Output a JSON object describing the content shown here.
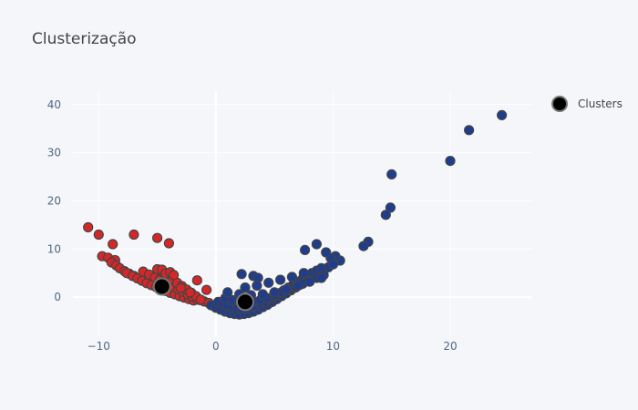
{
  "chart_data": {
    "type": "scatter",
    "title": "Clusterização",
    "xlabel": "",
    "ylabel": "",
    "xlim": [
      -12.2,
      27.0
    ],
    "ylim": [
      -8.3,
      42.8
    ],
    "xticks": [
      -10,
      0,
      10,
      20
    ],
    "yticks": [
      0,
      10,
      20,
      30,
      40
    ],
    "grid": true,
    "legend": {
      "position": "right",
      "entries": [
        "Clusters"
      ]
    },
    "colors": {
      "background": "#f5f6fa",
      "grid": "#ffffff",
      "cluster_red": "#d62728",
      "cluster_blue": "#1f3d8f",
      "marker_edge": "#444444",
      "centroid": "#000000"
    },
    "series": [
      {
        "color": "#d62728",
        "x": [
          -10.9,
          -10.0,
          -9.7,
          -9.2,
          -8.8,
          -8.6,
          -7.0,
          -5.0,
          -4.0,
          -8.9,
          -8.5,
          -8.2,
          -7.8,
          -7.4,
          -7.0,
          -6.6,
          -6.2,
          -5.8,
          -5.4,
          -5.0,
          -4.6,
          -4.2,
          -3.8,
          -3.4,
          -3.0,
          -2.6,
          -2.2,
          -1.8,
          -1.4,
          -1.0,
          -0.6,
          -7.6,
          -7.1,
          -6.7,
          -6.3,
          -5.9,
          -5.5,
          -5.1,
          -4.7,
          -4.3,
          -3.9,
          -3.5,
          -3.1,
          -2.7,
          -2.3,
          -1.9,
          -6.2,
          -5.7,
          -5.2,
          -4.8,
          -4.4,
          -4.0,
          -3.6,
          -3.2,
          -2.8,
          -2.4,
          -2.0,
          -1.6,
          -5.0,
          -4.5,
          -4.1,
          -3.7,
          -3.3,
          -2.9,
          -2.5,
          -2.1,
          -1.7,
          -1.3,
          -4.6,
          -4.3,
          -3.9,
          -3.6,
          -1.6,
          -0.8,
          -3.0,
          -2.2
        ],
        "y": [
          14.5,
          13.0,
          8.5,
          8.2,
          11.0,
          7.7,
          13.0,
          12.3,
          11.2,
          7.2,
          6.6,
          6.0,
          5.4,
          4.9,
          4.4,
          3.9,
          3.5,
          3.1,
          2.7,
          2.3,
          1.9,
          1.5,
          1.2,
          0.9,
          0.6,
          0.3,
          0.0,
          -0.3,
          -0.6,
          -0.9,
          -1.2,
          5.0,
          4.4,
          3.9,
          3.4,
          2.9,
          2.5,
          2.1,
          1.7,
          1.3,
          0.9,
          0.6,
          0.2,
          -0.1,
          -0.4,
          -0.7,
          5.3,
          4.7,
          4.1,
          3.6,
          3.1,
          2.6,
          2.1,
          1.6,
          1.1,
          0.6,
          0.1,
          -0.4,
          5.8,
          5.1,
          4.4,
          3.7,
          3.0,
          2.3,
          1.6,
          0.9,
          0.2,
          -0.5,
          5.7,
          4.9,
          5.2,
          4.6,
          3.5,
          1.5,
          1.9,
          1.0
        ]
      },
      {
        "color": "#1f3d8f",
        "x": [
          24.4,
          21.6,
          20.0,
          15.0,
          14.9,
          14.5,
          13.0,
          12.6,
          10.6,
          10.2,
          9.8,
          9.4,
          8.6,
          7.6,
          2.2,
          3.2,
          3.6,
          -0.4,
          0.0,
          0.4,
          0.8,
          1.2,
          1.6,
          2.0,
          2.4,
          2.8,
          3.2,
          3.6,
          4.0,
          4.4,
          4.8,
          5.2,
          5.6,
          6.0,
          6.4,
          6.8,
          7.2,
          7.6,
          8.0,
          8.4,
          8.8,
          9.2,
          9.6,
          10.0,
          0.2,
          0.6,
          1.0,
          1.4,
          1.8,
          2.2,
          2.6,
          3.0,
          3.4,
          3.8,
          4.2,
          4.6,
          5.0,
          5.4,
          5.8,
          6.2,
          6.6,
          7.0,
          7.4,
          7.8,
          8.2,
          8.6,
          9.0,
          0.8,
          1.4,
          2.0,
          2.6,
          3.2,
          3.8,
          4.4,
          5.0,
          5.6,
          6.2,
          6.8,
          7.4,
          8.0,
          8.6,
          9.2,
          1.0,
          2.0,
          3.0,
          4.0,
          5.0,
          6.0,
          7.0,
          8.0,
          9.0,
          2.5,
          3.5,
          4.5,
          5.5,
          6.5,
          7.5
        ],
        "y": [
          37.8,
          34.7,
          28.3,
          25.5,
          18.6,
          17.1,
          11.5,
          10.6,
          7.6,
          8.5,
          8.1,
          9.3,
          11.0,
          9.8,
          4.8,
          4.4,
          4.0,
          -1.7,
          -2.2,
          -2.6,
          -3.0,
          -3.3,
          -3.5,
          -3.6,
          -3.5,
          -3.3,
          -3.0,
          -2.6,
          -2.1,
          -1.6,
          -1.0,
          -0.4,
          0.2,
          0.8,
          1.4,
          2.0,
          2.6,
          3.2,
          3.8,
          4.4,
          5.0,
          5.6,
          6.2,
          6.8,
          -1.0,
          -1.4,
          -1.8,
          -2.1,
          -2.3,
          -2.4,
          -2.3,
          -2.1,
          -1.8,
          -1.4,
          -0.9,
          -0.4,
          0.2,
          0.8,
          1.4,
          2.0,
          2.6,
          3.2,
          3.8,
          4.4,
          5.0,
          5.5,
          6.0,
          -0.2,
          -0.6,
          -0.9,
          -1.0,
          -0.9,
          -0.6,
          -0.2,
          0.4,
          1.0,
          1.6,
          2.2,
          2.8,
          3.4,
          4.0,
          4.6,
          1.0,
          0.6,
          0.4,
          0.6,
          1.0,
          1.6,
          2.4,
          3.2,
          4.0,
          2.0,
          2.4,
          3.0,
          3.6,
          4.2,
          5.0
        ]
      },
      {
        "name": "Clusters",
        "color": "#000000",
        "x": [
          -4.6,
          2.5
        ],
        "y": [
          2.2,
          -1.0
        ]
      }
    ]
  }
}
